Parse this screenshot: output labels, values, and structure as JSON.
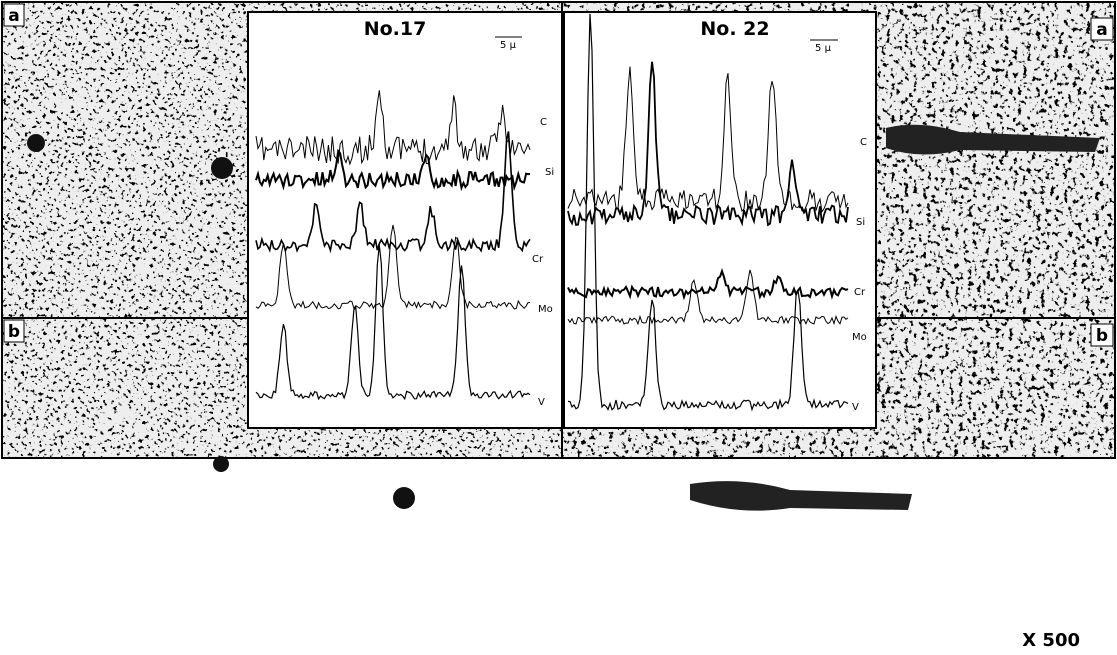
{
  "panels": {
    "top_left": {
      "label": "a"
    },
    "bottom_left": {
      "label": "b"
    },
    "top_right": {
      "label": "a"
    },
    "bottom_right": {
      "label": "b"
    }
  },
  "insets": [
    {
      "title": "No.17",
      "scale": "5 µ",
      "traces": [
        "C",
        "Si",
        "Cr",
        "Mo",
        "V"
      ]
    },
    {
      "title": "No. 22",
      "scale": "5 µ",
      "traces": [
        "C",
        "Si",
        "Cr",
        "Mo",
        "V"
      ]
    }
  ],
  "magnification": "X 500"
}
